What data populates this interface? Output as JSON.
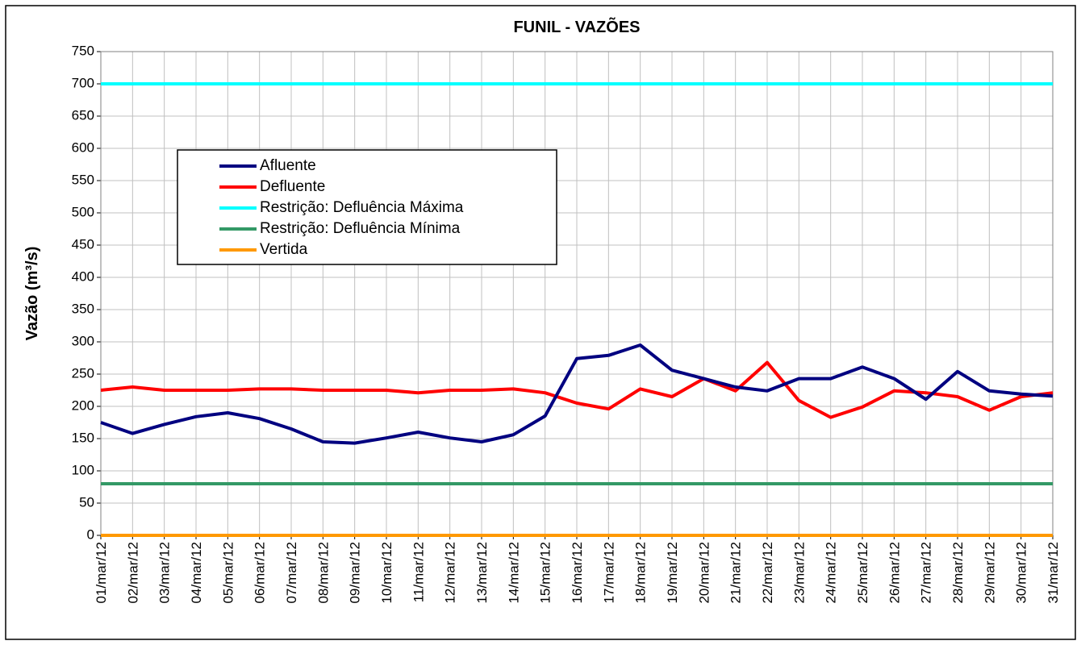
{
  "chart_data": {
    "type": "line",
    "title": "FUNIL - VAZÕES",
    "y_label": "Vazão (m³/s)",
    "categories": [
      "01/mar/12",
      "02/mar/12",
      "03/mar/12",
      "04/mar/12",
      "05/mar/12",
      "06/mar/12",
      "07/mar/12",
      "08/mar/12",
      "09/mar/12",
      "10/mar/12",
      "11/mar/12",
      "12/mar/12",
      "13/mar/12",
      "14/mar/12",
      "15/mar/12",
      "16/mar/12",
      "17/mar/12",
      "18/mar/12",
      "19/mar/12",
      "20/mar/12",
      "21/mar/12",
      "22/mar/12",
      "23/mar/12",
      "24/mar/12",
      "25/mar/12",
      "26/mar/12",
      "27/mar/12",
      "28/mar/12",
      "29/mar/12",
      "30/mar/12",
      "31/mar/12"
    ],
    "series": [
      {
        "name": "Afluente",
        "color": "#000080",
        "values": [
          175,
          158,
          172,
          184,
          190,
          181,
          165,
          145,
          143,
          151,
          160,
          151,
          145,
          156,
          185,
          274,
          279,
          295,
          256,
          243,
          230,
          224,
          243,
          243,
          261,
          243,
          211,
          254,
          224,
          219,
          216
        ]
      },
      {
        "name": "Defluente",
        "color": "#ff0000",
        "values": [
          225,
          230,
          225,
          225,
          225,
          227,
          227,
          225,
          225,
          225,
          221,
          225,
          225,
          227,
          221,
          205,
          196,
          227,
          215,
          243,
          224,
          268,
          209,
          183,
          199,
          224,
          221,
          215,
          194,
          215,
          221
        ]
      },
      {
        "name": "Restrição: Defluência Máxima",
        "color": "#00ffff",
        "values": [
          700,
          700,
          700,
          700,
          700,
          700,
          700,
          700,
          700,
          700,
          700,
          700,
          700,
          700,
          700,
          700,
          700,
          700,
          700,
          700,
          700,
          700,
          700,
          700,
          700,
          700,
          700,
          700,
          700,
          700,
          700
        ]
      },
      {
        "name": "Restrição: Defluência Mínima",
        "color": "#339966",
        "values": [
          80,
          80,
          80,
          80,
          80,
          80,
          80,
          80,
          80,
          80,
          80,
          80,
          80,
          80,
          80,
          80,
          80,
          80,
          80,
          80,
          80,
          80,
          80,
          80,
          80,
          80,
          80,
          80,
          80,
          80,
          80
        ]
      },
      {
        "name": "Vertida",
        "color": "#ff9900",
        "values": [
          0,
          0,
          0,
          0,
          0,
          0,
          0,
          0,
          0,
          0,
          0,
          0,
          0,
          0,
          0,
          0,
          0,
          0,
          0,
          0,
          0,
          0,
          0,
          0,
          0,
          0,
          0,
          0,
          0,
          0,
          0
        ]
      }
    ],
    "ylim": [
      0,
      750
    ],
    "yticks": [
      0,
      50,
      100,
      150,
      200,
      250,
      300,
      350,
      400,
      450,
      500,
      550,
      600,
      650,
      700,
      750
    ],
    "grid": true
  }
}
